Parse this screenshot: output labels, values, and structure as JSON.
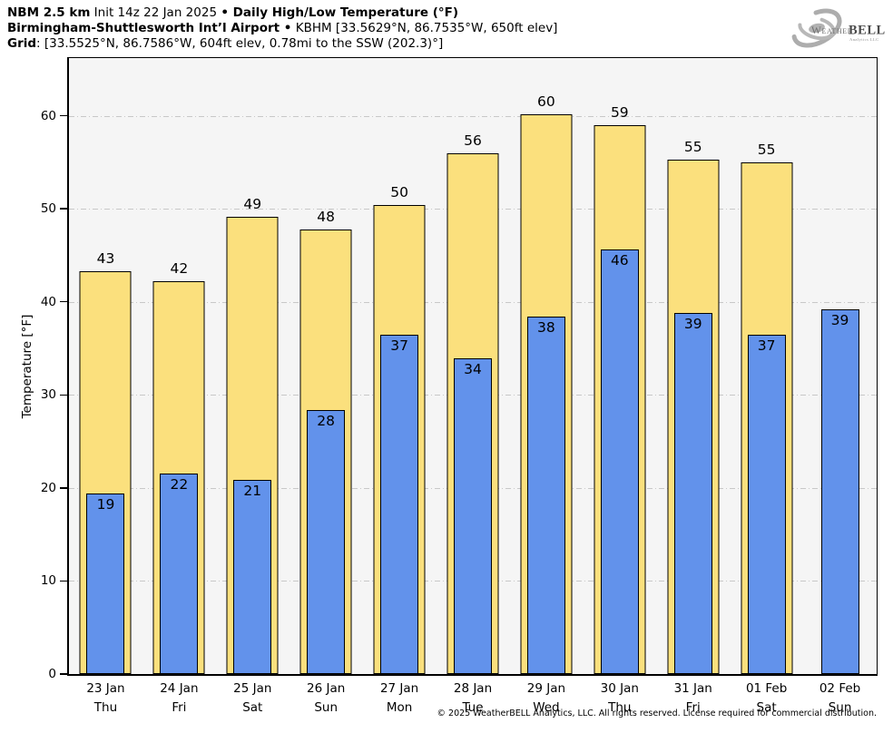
{
  "header": {
    "line1": [
      {
        "text": "NBM 2.5 km",
        "bold": true
      },
      {
        "text": " Init 14z 22 Jan 2025 ",
        "bold": false
      },
      {
        "text": "• Daily High/Low Temperature (°F)",
        "bold": true
      }
    ],
    "line2": [
      {
        "text": "Birmingham-Shuttlesworth Int’l Airport •",
        "bold": true
      },
      {
        "text": " KBHM [33.5629°N, 86.7535°W, 650ft elev]",
        "bold": false
      }
    ],
    "line3": [
      {
        "text": "Grid",
        "bold": true
      },
      {
        "text": ": [33.5525°N, 86.7586°W, 604ft elev, 0.78mi to the SSW (202.3)°]",
        "bold": false
      }
    ]
  },
  "logo": {
    "weather": "Weather",
    "bell": "BELL",
    "sub": "Analytics LLC"
  },
  "footer": {
    "copyright": "© 2025 WeatherBELL Analytics, LLC. All rights reserved. License required for commercial distribution."
  },
  "chart_data": {
    "type": "bar",
    "title": "Daily High/Low Temperature (°F)",
    "xlabel": "",
    "ylabel": "Temperature [°F]",
    "ylim": [
      0,
      66.2
    ],
    "yticks": [
      0,
      10,
      20,
      30,
      40,
      50,
      60
    ],
    "grid": true,
    "legend_position": "none",
    "categories": [
      {
        "date": "23 Jan",
        "day": "Thu"
      },
      {
        "date": "24 Jan",
        "day": "Fri"
      },
      {
        "date": "25 Jan",
        "day": "Sat"
      },
      {
        "date": "26 Jan",
        "day": "Sun"
      },
      {
        "date": "27 Jan",
        "day": "Mon"
      },
      {
        "date": "28 Jan",
        "day": "Tue"
      },
      {
        "date": "29 Jan",
        "day": "Wed"
      },
      {
        "date": "30 Jan",
        "day": "Thu"
      },
      {
        "date": "31 Jan",
        "day": "Fri"
      },
      {
        "date": "01 Feb",
        "day": "Sat"
      },
      {
        "date": "02 Feb",
        "day": "Sun"
      }
    ],
    "series": [
      {
        "name": "High",
        "color": "#FBE07D",
        "border_color": "#000000",
        "label_position": "above",
        "values": [
          43.3,
          42.2,
          49.1,
          47.8,
          50.4,
          56.0,
          60.2,
          59.0,
          55.3,
          55.0,
          null
        ],
        "labels": [
          "43",
          "42",
          "49",
          "48",
          "50",
          "56",
          "60",
          "59",
          "55",
          "55",
          null
        ]
      },
      {
        "name": "Low",
        "color": "#6292EB",
        "border_color": "#000000",
        "label_position": "inside-top",
        "values": [
          19.4,
          21.5,
          20.9,
          28.4,
          36.5,
          33.9,
          38.4,
          45.6,
          38.8,
          36.5,
          39.2
        ],
        "labels": [
          "19",
          "22",
          "21",
          "28",
          "37",
          "34",
          "38",
          "46",
          "39",
          "37",
          "39"
        ]
      }
    ],
    "colors": {
      "plot_background": "#F5F5F5",
      "page_background": "#FFFFFF",
      "gridline": "#C8C8C8",
      "text": "#000000"
    }
  }
}
